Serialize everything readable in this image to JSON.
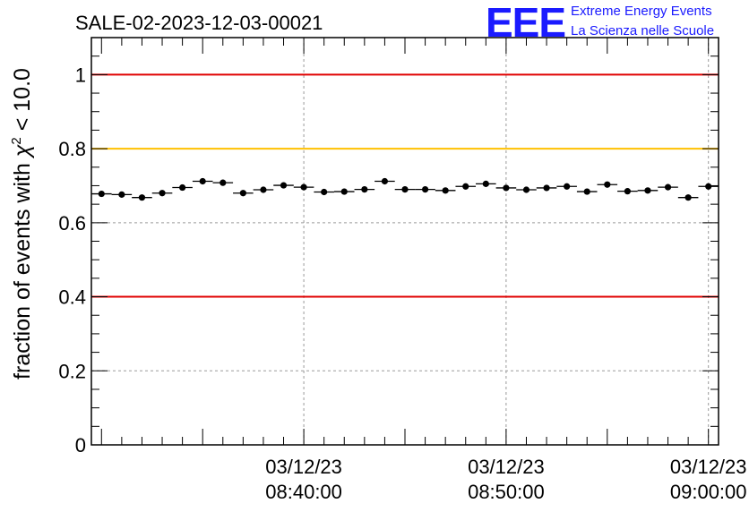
{
  "title": "SALE-02-2023-12-03-00021",
  "logo": {
    "mark": "EEE",
    "line1": "Extreme Energy Events",
    "line2": "La Scienza nelle Scuole"
  },
  "chart_data": {
    "type": "scatter",
    "title": "SALE-02-2023-12-03-00021",
    "ylabel": "fraction of events with χ² < 10.0",
    "ylabel_main": "fraction of events with ",
    "ylabel_chi": "χ",
    "ylabel_sup": "2",
    "ylabel_rest": " < 10.0",
    "xlabel": "",
    "ylim": [
      0,
      1.1
    ],
    "xlim_minutes": [
      -10.5,
      20.5
    ],
    "x_minutes_from": "03/12/23 08:40:00",
    "yticks": [
      "0",
      "0.2",
      "0.4",
      "0.6",
      "0.8",
      "1"
    ],
    "ytick_values": [
      0,
      0.2,
      0.4,
      0.6,
      0.8,
      1.0
    ],
    "xticks": [
      {
        "minute": 0,
        "date": "03/12/23",
        "time": "08:40:00"
      },
      {
        "minute": 10,
        "date": "03/12/23",
        "time": "08:50:00"
      },
      {
        "minute": 20,
        "date": "03/12/23",
        "time": "09:00:00"
      }
    ],
    "grid": true,
    "reference_lines": [
      {
        "y": 1.0,
        "color": "#e00000"
      },
      {
        "y": 0.8,
        "color": "#ffc000"
      },
      {
        "y": 0.4,
        "color": "#e00000"
      }
    ],
    "x_minutes": [
      -10,
      -9,
      -8,
      -7,
      -6,
      -5,
      -4,
      -3,
      -2,
      -1,
      0,
      1,
      2,
      3,
      4,
      5,
      6,
      7,
      8,
      9,
      10,
      11,
      12,
      13,
      14,
      15,
      16,
      17,
      18,
      19,
      20
    ],
    "values": [
      0.678,
      0.676,
      0.668,
      0.68,
      0.695,
      0.712,
      0.708,
      0.68,
      0.689,
      0.701,
      0.696,
      0.683,
      0.684,
      0.69,
      0.712,
      0.69,
      0.69,
      0.687,
      0.698,
      0.705,
      0.694,
      0.689,
      0.694,
      0.698,
      0.684,
      0.703,
      0.685,
      0.687,
      0.696,
      0.668,
      0.698
    ],
    "errors": [
      0.008,
      0.008,
      0.008,
      0.008,
      0.008,
      0.008,
      0.008,
      0.008,
      0.008,
      0.008,
      0.008,
      0.008,
      0.008,
      0.008,
      0.008,
      0.008,
      0.008,
      0.008,
      0.008,
      0.008,
      0.008,
      0.008,
      0.008,
      0.008,
      0.008,
      0.008,
      0.008,
      0.008,
      0.008,
      0.008,
      0.008
    ],
    "marker_color": "#000000"
  }
}
